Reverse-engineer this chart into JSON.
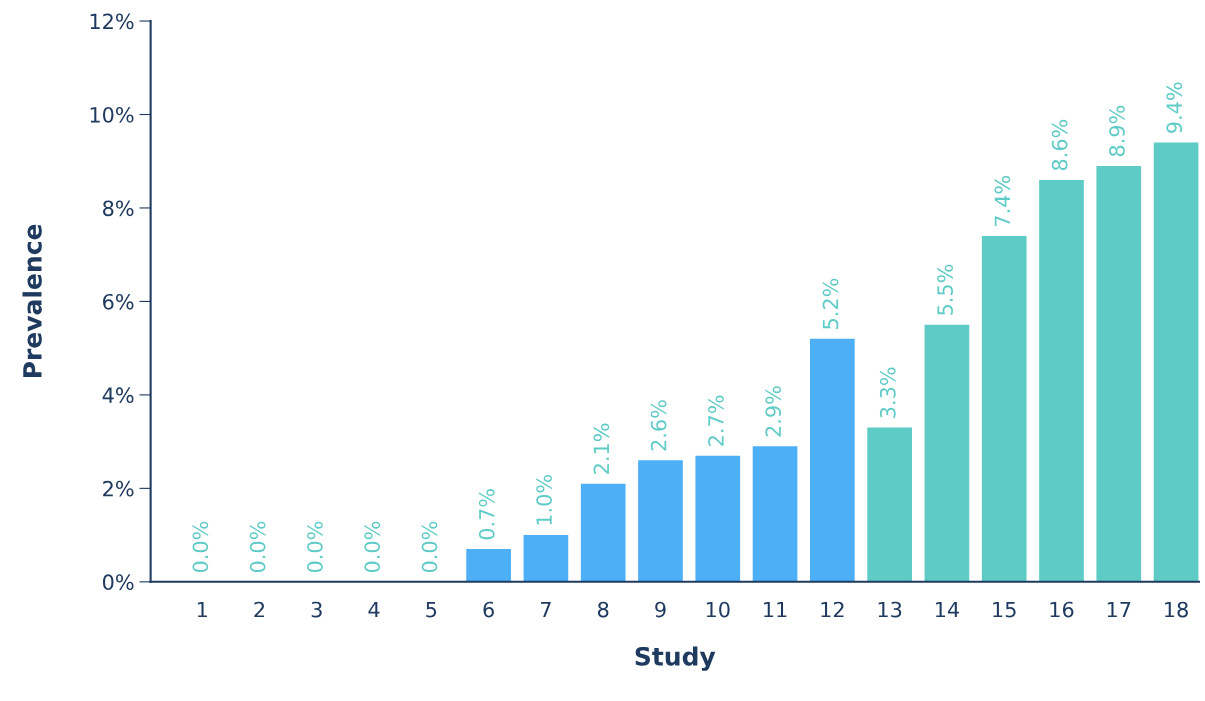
{
  "chart_data": {
    "type": "bar",
    "xlabel": "Study",
    "ylabel": "Prevalence",
    "categories": [
      "1",
      "2",
      "3",
      "4",
      "5",
      "6",
      "7",
      "8",
      "9",
      "10",
      "11",
      "12",
      "13",
      "14",
      "15",
      "16",
      "17",
      "18"
    ],
    "values": [
      0.0,
      0.0,
      0.0,
      0.0,
      0.0,
      0.7,
      1.0,
      2.1,
      2.6,
      2.7,
      2.9,
      5.2,
      3.3,
      5.5,
      7.4,
      8.6,
      8.9,
      9.4
    ],
    "colors": [
      "#4db0f7",
      "#4db0f7",
      "#4db0f7",
      "#4db0f7",
      "#4db0f7",
      "#4db0f7",
      "#4db0f7",
      "#4db0f7",
      "#4db0f7",
      "#4db0f7",
      "#4db0f7",
      "#4db0f7",
      "#5ecbc6",
      "#5ecbc6",
      "#5ecbc6",
      "#5ecbc6",
      "#5ecbc6",
      "#5ecbc6"
    ],
    "value_labels": [
      "0.0%",
      "0.0%",
      "0.0%",
      "0.0%",
      "0.0%",
      "0.7%",
      "1.0%",
      "2.1%",
      "2.6%",
      "2.7%",
      "2.9%",
      "5.2%",
      "3.3%",
      "5.5%",
      "7.4%",
      "8.6%",
      "8.9%",
      "9.4%"
    ],
    "ylim": [
      0,
      12
    ],
    "yticks": [
      {
        "value": 0,
        "label": "0%"
      },
      {
        "value": 2,
        "label": "2%"
      },
      {
        "value": 4,
        "label": "4%"
      },
      {
        "value": 6,
        "label": "6%"
      },
      {
        "value": 8,
        "label": "8%"
      },
      {
        "value": 10,
        "label": "10%"
      },
      {
        "value": 12,
        "label": "12%"
      }
    ],
    "grid": false
  }
}
